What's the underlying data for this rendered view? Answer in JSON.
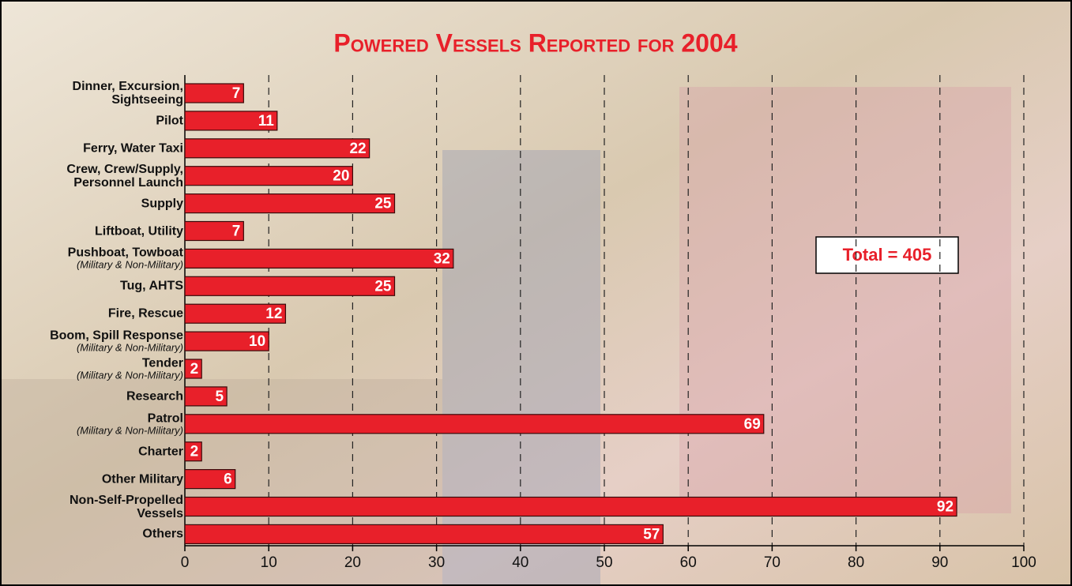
{
  "chart_data": {
    "type": "bar",
    "orientation": "horizontal",
    "title": "Powered Vessels Reported for 2004",
    "categories": [
      "Dinner, Excursion, Sightseeing",
      "Pilot",
      "Ferry, Water Taxi",
      "Crew, Crew/Supply, Personnel Launch",
      "Supply",
      "Liftboat, Utility",
      "Pushboat, Towboat",
      "Tug, AHTS",
      "Fire, Rescue",
      "Boom, Spill Response",
      "Tender",
      "Research",
      "Patrol",
      "Charter",
      "Other Military",
      "Non-Self-Propelled Vessels",
      "Others"
    ],
    "category_notes": [
      null,
      null,
      null,
      null,
      null,
      null,
      "(Military & Non-Military)",
      null,
      null,
      "(Military & Non-Military)",
      "(Military & Non-Military)",
      null,
      "(Military & Non-Military)",
      null,
      null,
      null,
      null
    ],
    "values": [
      7,
      11,
      22,
      20,
      25,
      7,
      32,
      25,
      12,
      10,
      2,
      5,
      69,
      2,
      6,
      92,
      57
    ],
    "color": "#e8202a",
    "xlim": [
      0,
      100
    ],
    "xticks": [
      0,
      10,
      20,
      30,
      40,
      50,
      60,
      70,
      80,
      90,
      100
    ],
    "grid": true,
    "annotation": "Total = 405"
  }
}
